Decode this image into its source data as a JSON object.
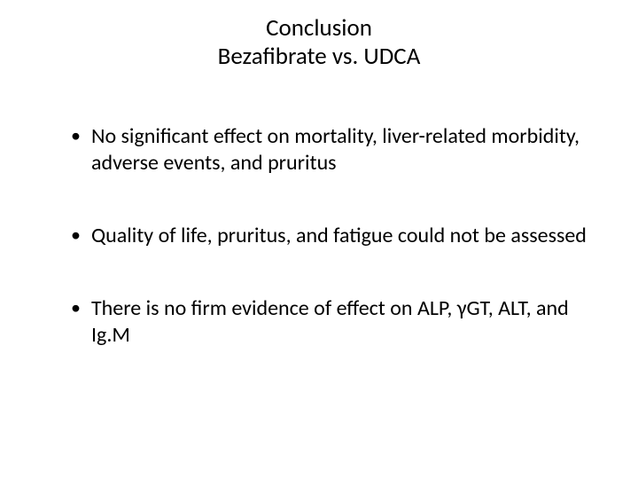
{
  "slide": {
    "title_line1": "Conclusion",
    "title_line2": "Bezafibrate vs. UDCA",
    "bullets": [
      "No significant effect on mortality, liver-related morbidity, adverse events, and pruritus",
      "Quality of life, pruritus, and fatigue could not be assessed",
      "There is no firm evidence of effect on ALP, γGT, ALT, and Ig.M"
    ]
  },
  "style": {
    "background_color": "#ffffff",
    "title_color": "#000000",
    "title_fontsize": 27,
    "body_color": "#000000",
    "body_fontsize": 24,
    "bullet_marker": "•",
    "font_family": "Calibri"
  }
}
